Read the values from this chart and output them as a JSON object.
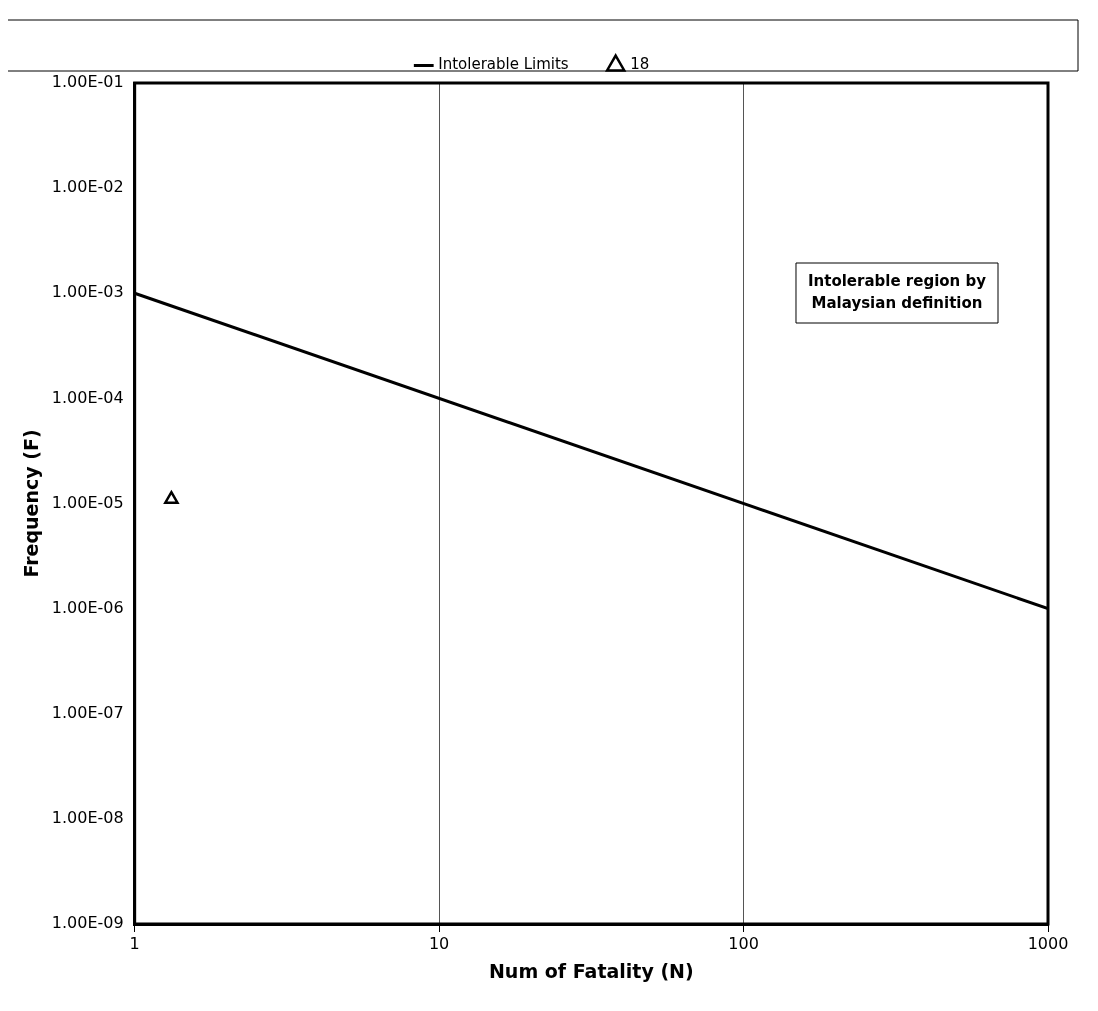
{
  "chart_data": {
    "type": "line",
    "xlabel": "Num of Fatality (N)",
    "ylabel": "Frequency (F)",
    "log": "xy",
    "grid": "x",
    "legend": "top",
    "xlim": [
      1,
      1000
    ],
    "xticks": [
      1,
      10,
      100,
      1000
    ],
    "ylim": [
      1e-09,
      0.1
    ],
    "yticks": [
      {
        "value": 1e-09,
        "label": "1.00E-09"
      },
      {
        "value": 1e-08,
        "label": "1.00E-08"
      },
      {
        "value": 1e-07,
        "label": "1.00E-07"
      },
      {
        "value": 1e-06,
        "label": "1.00E-06"
      },
      {
        "value": 1e-05,
        "label": "1.00E-05"
      },
      {
        "value": 0.0001,
        "label": "1.00E-04"
      },
      {
        "value": 0.001,
        "label": "1.00E-03"
      },
      {
        "value": 0.01,
        "label": "1.00E-02"
      },
      {
        "value": 0.1,
        "label": "1.00E-01"
      }
    ],
    "series": [
      {
        "name": "Intolerable Limits",
        "type": "line",
        "color": "#000000",
        "marker": "none",
        "x": [
          1,
          1000
        ],
        "values": [
          0.001,
          1e-06
        ]
      },
      {
        "name": "18",
        "type": "scatter",
        "color": "#000000",
        "marker": "triangle",
        "x": [
          1.32
        ],
        "values": [
          1.1e-05
        ]
      }
    ],
    "annotations": [
      "Intolerable region by Malaysian definition"
    ]
  }
}
